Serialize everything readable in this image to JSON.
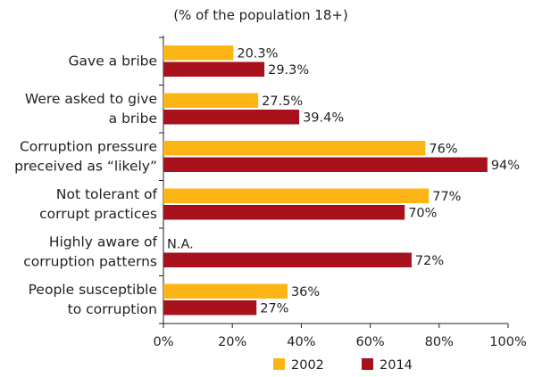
{
  "chart_data": {
    "type": "bar",
    "orientation": "horizontal",
    "subtitle": "(% of the population 18+)",
    "categories": [
      [
        "Gave a bribe"
      ],
      [
        "Were asked to give",
        "a bribe"
      ],
      [
        "Corruption pressure",
        "preceived as “likely”"
      ],
      [
        "Not tolerant of",
        "corrupt practices"
      ],
      [
        "Highly aware of",
        "corruption patterns"
      ],
      [
        "People susceptible",
        "to corruption"
      ]
    ],
    "series": [
      {
        "name": "2002",
        "color": "#fdb515",
        "values": [
          20.3,
          27.5,
          76,
          77,
          null,
          36
        ],
        "labels": [
          "20.3%",
          "27.5%",
          "76%",
          "77%",
          "N.A.",
          "36%"
        ]
      },
      {
        "name": "2014",
        "color": "#a6111c",
        "values": [
          29.3,
          39.4,
          94,
          70,
          72,
          27
        ],
        "labels": [
          "29.3%",
          "39.4%",
          "94%",
          "70%",
          "72%",
          "27%"
        ]
      }
    ],
    "xlim": [
      0,
      100
    ],
    "xticks": [
      "0%",
      "20%",
      "40%",
      "60%",
      "80%",
      "100%"
    ],
    "legend_position": "bottom"
  }
}
